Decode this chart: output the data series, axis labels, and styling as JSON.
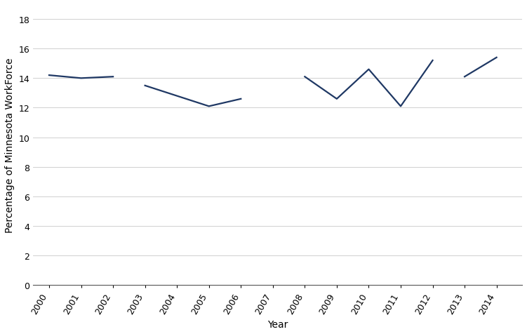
{
  "segments": [
    {
      "years": [
        2000,
        2001,
        2002
      ],
      "values": [
        14.2,
        14.0,
        14.1
      ]
    },
    {
      "years": [
        2003,
        2004,
        2005,
        2006
      ],
      "values": [
        13.5,
        12.8,
        12.1,
        12.6
      ]
    },
    {
      "years": [
        2008,
        2009,
        2010,
        2011,
        2012
      ],
      "values": [
        14.1,
        12.6,
        14.6,
        12.1,
        15.2
      ]
    },
    {
      "years": [
        2013,
        2014
      ],
      "values": [
        14.1,
        15.4
      ]
    }
  ],
  "all_years": [
    2000,
    2001,
    2002,
    2003,
    2004,
    2005,
    2006,
    2007,
    2008,
    2009,
    2010,
    2011,
    2012,
    2013,
    2014
  ],
  "line_color": "#1F3864",
  "line_width": 1.6,
  "ylabel": "Percentage of Minnesota WorkForce",
  "xlabel": "Year",
  "ylim": [
    0,
    19
  ],
  "yticks": [
    0,
    2,
    4,
    6,
    8,
    10,
    12,
    14,
    16,
    18
  ],
  "grid_color": "#BBBBBB",
  "grid_alpha": 0.8,
  "bg_color": "#FFFFFF",
  "tick_rotation": 60,
  "ylabel_fontsize": 10,
  "xlabel_fontsize": 10,
  "tick_fontsize": 9
}
